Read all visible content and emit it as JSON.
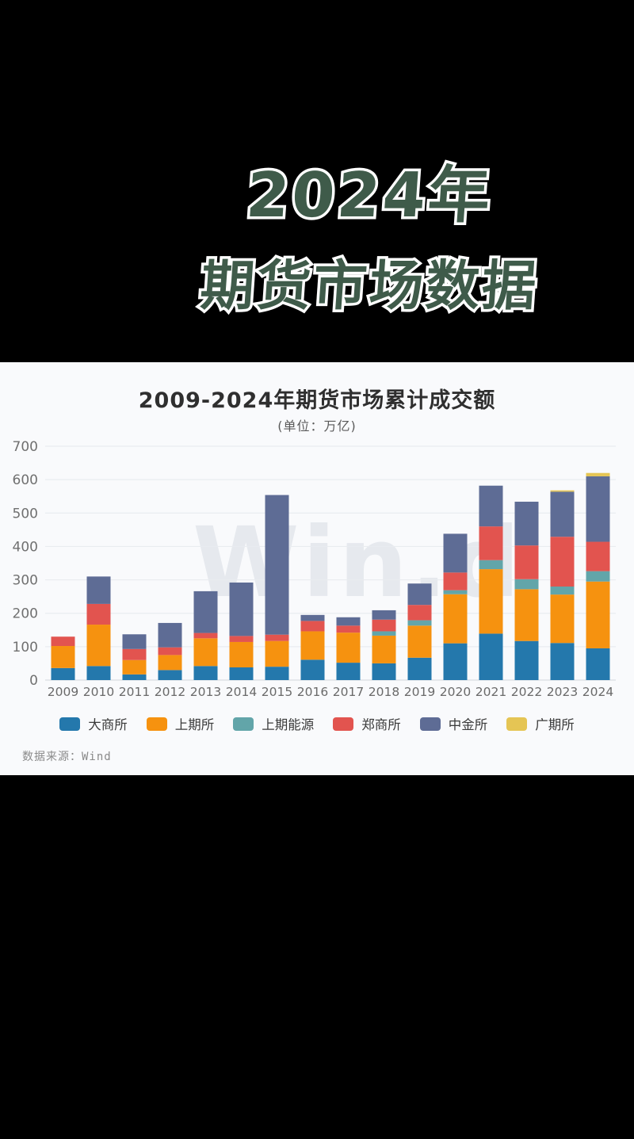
{
  "page": {
    "title_line1": "2024年",
    "title_line2": "期货市场数据",
    "title_color": "#3f5b4a",
    "title_outline_color": "#ffffff",
    "background_color": "#000000"
  },
  "chart": {
    "title": "2009-2024年期货市场累计成交额",
    "subtitle": "(单位：万亿)",
    "watermark": "Win.d",
    "source": "数据来源：Wind",
    "panel_background": "#f9fafc",
    "gridline_color": "#e9ecf0",
    "axis_line_color": "#d9dde3"
  },
  "chart_data": {
    "type": "bar",
    "stacked": true,
    "title": "2009-2024年期货市场累计成交额",
    "unit_label": "(单位：万亿)",
    "xlabel": "",
    "ylabel": "",
    "ylim": [
      0,
      700
    ],
    "yticks": [
      0,
      100,
      200,
      300,
      400,
      500,
      600,
      700
    ],
    "grid": true,
    "legend_position": "bottom",
    "categories": [
      "2009",
      "2010",
      "2011",
      "2012",
      "2013",
      "2014",
      "2015",
      "2016",
      "2017",
      "2018",
      "2019",
      "2020",
      "2021",
      "2022",
      "2023",
      "2024"
    ],
    "series": [
      {
        "name": "大商所",
        "color": "#2478ac",
        "values": [
          36,
          42,
          17,
          30,
          42,
          38,
          40,
          61,
          52,
          50,
          67,
          110,
          139,
          117,
          111,
          95
        ]
      },
      {
        "name": "上期所",
        "color": "#f6920f",
        "values": [
          66,
          124,
          43,
          45,
          83,
          76,
          77,
          85,
          90,
          83,
          96,
          147,
          193,
          155,
          145,
          200
        ]
      },
      {
        "name": "上期能源",
        "color": "#62a5a9",
        "values": [
          0,
          0,
          0,
          0,
          0,
          0,
          0,
          0,
          0,
          13,
          16,
          12,
          27,
          30,
          24,
          31
        ]
      },
      {
        "name": "郑商所",
        "color": "#e2544f",
        "values": [
          28,
          62,
          33,
          23,
          16,
          18,
          19,
          31,
          21,
          35,
          46,
          53,
          101,
          101,
          149,
          88
        ]
      },
      {
        "name": "中金所",
        "color": "#5e6c95",
        "values": [
          0,
          82,
          44,
          73,
          125,
          160,
          418,
          18,
          25,
          28,
          64,
          116,
          122,
          131,
          135,
          196
        ]
      },
      {
        "name": "广期所",
        "color": "#e5c554",
        "values": [
          0,
          0,
          0,
          0,
          0,
          0,
          0,
          0,
          0,
          0,
          0,
          0,
          0,
          0,
          4,
          10
        ]
      }
    ],
    "totals": [
      130,
      310,
      137,
      171,
      266,
      292,
      554,
      195,
      188,
      209,
      289,
      438,
      582,
      534,
      568,
      620
    ]
  }
}
